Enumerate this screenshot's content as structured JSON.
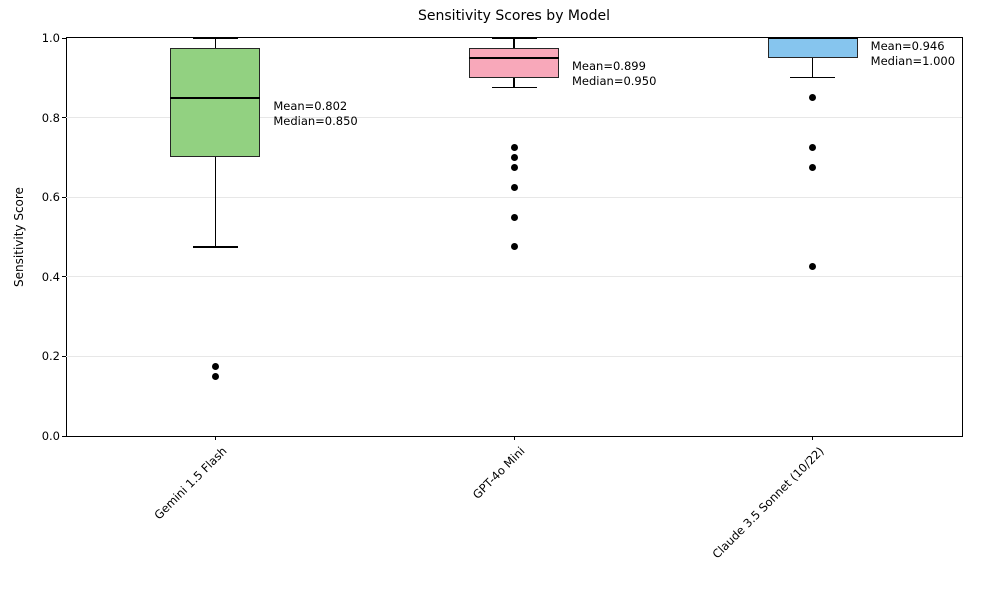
{
  "chart_data": {
    "type": "boxplot",
    "title": "Sensitivity Scores by Model",
    "ylabel": "Sensitivity Score",
    "xlabel": "",
    "ylim": [
      0.0,
      1.0
    ],
    "yticks": [
      0.0,
      0.2,
      0.4,
      0.6,
      0.8,
      1.0
    ],
    "ytick_labels": [
      "0.0",
      "0.2",
      "0.4",
      "0.6",
      "0.8",
      "1.0"
    ],
    "grid": "horizontal",
    "gridline_color": "#e7e7e7",
    "categories": [
      "Gemini 1.5 Flash",
      "GPT-4o Mini",
      "Claude 3.5 Sonnet (10/22)"
    ],
    "series": [
      {
        "name": "Gemini 1.5 Flash",
        "color": "#92d181",
        "whisker_low": 0.475,
        "q1": 0.7,
        "median": 0.85,
        "q3": 0.975,
        "whisker_high": 1.0,
        "outliers": [
          0.175,
          0.15
        ],
        "mean": 0.802,
        "annotation": [
          "Mean=0.802",
          "Median=0.850"
        ]
      },
      {
        "name": "GPT-4o Mini",
        "color": "#f8a8ba",
        "whisker_low": 0.875,
        "q1": 0.9,
        "median": 0.95,
        "q3": 0.975,
        "whisker_high": 1.0,
        "outliers": [
          0.725,
          0.7,
          0.675,
          0.625,
          0.55,
          0.475
        ],
        "mean": 0.899,
        "annotation": [
          "Mean=0.899",
          "Median=0.950"
        ]
      },
      {
        "name": "Claude 3.5 Sonnet (10/22)",
        "color": "#86c5ee",
        "whisker_low": 0.9,
        "q1": 0.95,
        "median": 1.0,
        "q3": 1.0,
        "whisker_high": 1.0,
        "outliers": [
          0.85,
          0.725,
          0.675,
          0.425
        ],
        "mean": 0.946,
        "annotation": [
          "Mean=0.946",
          "Median=1.000"
        ]
      }
    ]
  }
}
